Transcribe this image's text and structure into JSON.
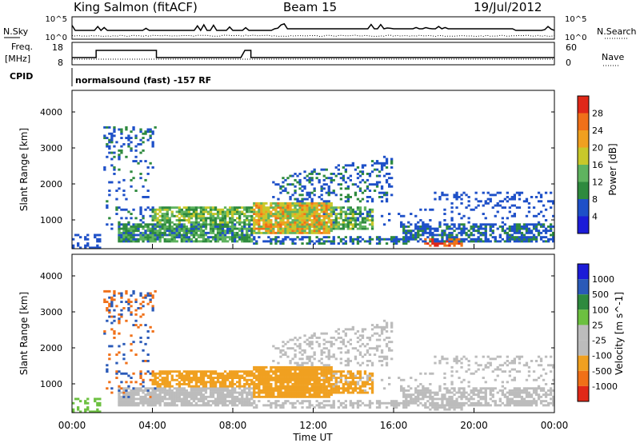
{
  "header": {
    "station": "King Salmon (fitACF)",
    "beam": "Beam 15",
    "date": "19/Jul/2012"
  },
  "noise_panel": {
    "left_label": "N.Sky",
    "right_label": "N.Search",
    "left_ticks": [
      "10^5",
      "10^0"
    ],
    "right_ticks": [
      "10^5",
      "10^0"
    ]
  },
  "freq_panel": {
    "left_label": "Freq.",
    "left_unit": "[MHz]",
    "right_label": "Nave",
    "left_ticks": [
      "18",
      "8"
    ],
    "right_ticks": [
      "60",
      "0"
    ]
  },
  "cpid_panel": {
    "label": "CPID",
    "text": "normalsound (fast) -157 RF"
  },
  "colors": {
    "power": [
      "#1c1cd8",
      "#1e50c8",
      "#2e8a3e",
      "#5fb35f",
      "#c8c82a",
      "#f0a020",
      "#f07018",
      "#e02818"
    ],
    "velocity": [
      "#1c1cd8",
      "#2a5ab8",
      "#2e8a3e",
      "#6cc040",
      "#bcbcbc",
      "#bcbcbc",
      "#f0a020",
      "#f07018",
      "#e02818"
    ]
  },
  "chart_data": [
    {
      "type": "heatmap",
      "title": "",
      "xlabel": "",
      "ylabel": "Slant Range [km]",
      "x_ticks": [
        "00:00",
        "04:00",
        "08:00",
        "12:00",
        "16:00",
        "20:00",
        "00:00"
      ],
      "y_ticks": [
        1000,
        2000,
        3000,
        4000
      ],
      "ylim": [
        200,
        4600
      ],
      "colorbar_label": "Power [dB]",
      "colorbar_ticks": [
        4,
        8,
        12,
        16,
        20,
        24,
        28
      ],
      "colorbar_range": [
        0,
        32
      ]
    },
    {
      "type": "heatmap",
      "title": "",
      "xlabel": "Time UT",
      "ylabel": "Slant Range [km]",
      "x_ticks": [
        "00:00",
        "04:00",
        "08:00",
        "12:00",
        "16:00",
        "20:00",
        "00:00"
      ],
      "y_ticks": [
        1000,
        2000,
        3000,
        4000
      ],
      "ylim": [
        200,
        4600
      ],
      "colorbar_label": "Velocity [m s^-1]",
      "colorbar_ticks": [
        "1000",
        "500",
        "100",
        "25",
        "-25",
        "-100",
        "-500",
        "-1000"
      ]
    }
  ]
}
